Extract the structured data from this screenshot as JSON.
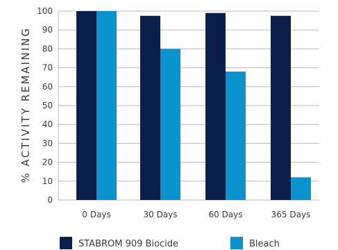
{
  "chart_data": {
    "type": "bar",
    "categories": [
      "0 Days",
      "30 Days",
      "60 Days",
      "365 Days"
    ],
    "series": [
      {
        "name": "STABROM 909 Biocide",
        "values": [
          100,
          97.5,
          99,
          97.5
        ],
        "color": "#0b1f4d"
      },
      {
        "name": "Bleach",
        "values": [
          100,
          80,
          68,
          12
        ],
        "color": "#0a93cf"
      }
    ],
    "title": "",
    "xlabel": "",
    "ylabel": "% ACTIVITY REMAINING",
    "ylim": [
      0,
      100
    ],
    "yticks": [
      0,
      10,
      20,
      30,
      40,
      50,
      60,
      70,
      80,
      90,
      100
    ],
    "grid": true,
    "legend": "bottom"
  }
}
